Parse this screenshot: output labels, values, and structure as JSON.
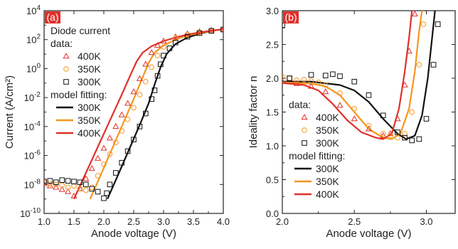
{
  "chart_data": [
    {
      "type": "line",
      "panel_label": "(a)",
      "xlabel": "Anode voltage (V)",
      "ylabel": "Current (A/cm²)",
      "xlim": [
        1.0,
        4.0
      ],
      "ylim_log10": [
        -10,
        4
      ],
      "y_scale": "log",
      "x_ticks": [
        "1.0",
        "1.5",
        "2.0",
        "2.5",
        "3.0",
        "3.5",
        "4.0"
      ],
      "y_ticks": [
        {
          "base": "10",
          "exp": "4"
        },
        {
          "base": "10",
          "exp": "2"
        },
        {
          "base": "10",
          "exp": "0"
        },
        {
          "base": "10",
          "exp": "-2"
        },
        {
          "base": "10",
          "exp": "-4"
        },
        {
          "base": "10",
          "exp": "-6"
        },
        {
          "base": "10",
          "exp": "-8"
        },
        {
          "base": "10",
          "exp": "-10"
        }
      ],
      "legend": {
        "title": "Diode current",
        "data_heading": "data:",
        "model_heading": "model fitting:",
        "placement": "top-left"
      },
      "data_series": [
        {
          "name": "400K",
          "marker": "triangle",
          "color": "#e0302a",
          "points": [
            [
              1.0,
              -7.95
            ],
            [
              1.1,
              -8.1
            ],
            [
              1.2,
              -8.2
            ],
            [
              1.3,
              -8.35
            ],
            [
              1.4,
              -8.5
            ],
            [
              1.5,
              -8.8
            ],
            [
              1.6,
              -8.3
            ],
            [
              1.7,
              -7.6
            ],
            [
              1.8,
              -6.9
            ],
            [
              1.9,
              -6.2
            ],
            [
              2.0,
              -5.5
            ],
            [
              2.1,
              -4.8
            ],
            [
              2.2,
              -4.0
            ],
            [
              2.3,
              -3.2
            ],
            [
              2.4,
              -2.4
            ],
            [
              2.5,
              -1.6
            ],
            [
              2.6,
              -0.7
            ],
            [
              2.7,
              0.3
            ],
            [
              2.8,
              1.1
            ],
            [
              2.9,
              1.6
            ],
            [
              3.0,
              1.9
            ],
            [
              3.2,
              2.2
            ],
            [
              3.4,
              2.4
            ],
            [
              3.6,
              2.55
            ],
            [
              3.8,
              2.65
            ],
            [
              4.0,
              2.7
            ]
          ]
        },
        {
          "name": "350K",
          "marker": "circle",
          "color": "#f5961e",
          "points": [
            [
              1.0,
              -7.85
            ],
            [
              1.1,
              -7.95
            ],
            [
              1.2,
              -8.0
            ],
            [
              1.3,
              -8.05
            ],
            [
              1.4,
              -8.2
            ],
            [
              1.5,
              -8.1
            ],
            [
              1.6,
              -8.3
            ],
            [
              1.7,
              -8.4
            ],
            [
              1.8,
              -8.2
            ],
            [
              1.9,
              -7.4
            ],
            [
              2.0,
              -6.6
            ],
            [
              2.1,
              -5.9
            ],
            [
              2.2,
              -5.1
            ],
            [
              2.3,
              -4.3
            ],
            [
              2.4,
              -3.5
            ],
            [
              2.5,
              -2.7
            ],
            [
              2.6,
              -1.8
            ],
            [
              2.7,
              -0.9
            ],
            [
              2.8,
              0.1
            ],
            [
              2.9,
              0.9
            ],
            [
              3.0,
              1.5
            ],
            [
              3.2,
              2.1
            ],
            [
              3.4,
              2.35
            ],
            [
              3.6,
              2.5
            ],
            [
              3.8,
              2.6
            ],
            [
              4.0,
              2.7
            ]
          ]
        },
        {
          "name": "300K",
          "marker": "square",
          "color": "#111111",
          "points": [
            [
              1.0,
              -7.8
            ],
            [
              1.1,
              -7.75
            ],
            [
              1.2,
              -7.85
            ],
            [
              1.3,
              -7.7
            ],
            [
              1.4,
              -7.75
            ],
            [
              1.5,
              -7.8
            ],
            [
              1.6,
              -7.85
            ],
            [
              1.7,
              -8.0
            ],
            [
              1.8,
              -8.3
            ],
            [
              1.9,
              -8.5
            ],
            [
              2.0,
              -8.95
            ],
            [
              2.05,
              -8.6
            ],
            [
              2.1,
              -8.0
            ],
            [
              2.2,
              -7.2
            ],
            [
              2.3,
              -6.5
            ],
            [
              2.4,
              -5.7
            ],
            [
              2.5,
              -4.9
            ],
            [
              2.6,
              -4.0
            ],
            [
              2.7,
              -3.1
            ],
            [
              2.8,
              -2.1
            ],
            [
              2.85,
              -1.5
            ],
            [
              2.9,
              -0.5
            ],
            [
              2.95,
              0.3
            ],
            [
              3.0,
              0.9
            ],
            [
              3.1,
              1.4
            ],
            [
              3.2,
              1.8
            ],
            [
              3.4,
              2.2
            ],
            [
              3.6,
              2.45
            ],
            [
              3.8,
              2.6
            ],
            [
              4.0,
              2.7
            ]
          ]
        }
      ],
      "model_series": [
        {
          "name": "300K",
          "color": "#111111",
          "points": [
            [
              2.06,
              -9.0
            ],
            [
              2.2,
              -7.7
            ],
            [
              2.4,
              -5.8
            ],
            [
              2.6,
              -3.9
            ],
            [
              2.75,
              -2.4
            ],
            [
              2.85,
              -1.1
            ],
            [
              2.95,
              0.1
            ],
            [
              3.05,
              1.0
            ],
            [
              3.2,
              1.7
            ],
            [
              3.4,
              2.15
            ],
            [
              3.6,
              2.4
            ],
            [
              3.8,
              2.6
            ],
            [
              4.0,
              2.72
            ]
          ]
        },
        {
          "name": "350K",
          "color": "#f5961e",
          "points": [
            [
              1.77,
              -9.0
            ],
            [
              1.9,
              -7.8
            ],
            [
              2.1,
              -5.9
            ],
            [
              2.3,
              -4.0
            ],
            [
              2.5,
              -2.1
            ],
            [
              2.65,
              -0.6
            ],
            [
              2.75,
              0.4
            ],
            [
              2.85,
              1.1
            ],
            [
              3.0,
              1.6
            ],
            [
              3.2,
              2.0
            ],
            [
              3.4,
              2.3
            ],
            [
              3.6,
              2.45
            ],
            [
              3.8,
              2.6
            ],
            [
              4.0,
              2.72
            ]
          ]
        },
        {
          "name": "400K",
          "color": "#e0302a",
          "points": [
            [
              1.5,
              -9.0
            ],
            [
              1.7,
              -7.2
            ],
            [
              1.9,
              -5.4
            ],
            [
              2.1,
              -3.6
            ],
            [
              2.3,
              -1.8
            ],
            [
              2.45,
              -0.4
            ],
            [
              2.55,
              0.5
            ],
            [
              2.65,
              1.1
            ],
            [
              2.8,
              1.55
            ],
            [
              3.0,
              1.9
            ],
            [
              3.2,
              2.15
            ],
            [
              3.4,
              2.35
            ],
            [
              3.6,
              2.5
            ],
            [
              3.8,
              2.62
            ],
            [
              4.0,
              2.72
            ]
          ]
        }
      ]
    },
    {
      "type": "line",
      "panel_label": "(b)",
      "xlabel": "Anode voltage (V)",
      "ylabel": "Ideality factor n",
      "xlim": [
        2.0,
        3.2
      ],
      "ylim": [
        0.0,
        3.0
      ],
      "x_ticks": [
        "2.0",
        "2.5",
        "3.0"
      ],
      "y_ticks": [
        "0.0",
        "0.5",
        "1.0",
        "1.5",
        "2.0",
        "2.5",
        "3.0"
      ],
      "legend": {
        "data_heading": "data:",
        "model_heading": "model fitting:",
        "placement": "bottom-left"
      },
      "data_series": [
        {
          "name": "400K",
          "marker": "triangle",
          "color": "#e0302a",
          "points": [
            [
              2.0,
              1.95
            ],
            [
              2.1,
              1.92
            ],
            [
              2.2,
              1.88
            ],
            [
              2.3,
              1.8
            ],
            [
              2.4,
              1.6
            ],
            [
              2.5,
              1.4
            ],
            [
              2.6,
              1.25
            ],
            [
              2.7,
              1.15
            ],
            [
              2.75,
              1.18
            ],
            [
              2.8,
              1.4
            ],
            [
              2.85,
              1.9
            ],
            [
              2.88,
              2.4
            ],
            [
              2.92,
              2.95
            ]
          ]
        },
        {
          "name": "350K",
          "marker": "circle",
          "color": "#f5961e",
          "points": [
            [
              2.0,
              2.02
            ],
            [
              2.05,
              2.0
            ],
            [
              2.1,
              1.97
            ],
            [
              2.15,
              1.98
            ],
            [
              2.2,
              1.96
            ],
            [
              2.25,
              1.94
            ],
            [
              2.3,
              1.9
            ],
            [
              2.4,
              1.78
            ],
            [
              2.5,
              1.55
            ],
            [
              2.6,
              1.3
            ],
            [
              2.7,
              1.18
            ],
            [
              2.75,
              1.15
            ],
            [
              2.8,
              1.12
            ],
            [
              2.85,
              1.18
            ],
            [
              2.9,
              1.5
            ],
            [
              2.95,
              2.2
            ],
            [
              2.98,
              2.8
            ]
          ]
        },
        {
          "name": "300K",
          "marker": "square",
          "color": "#111111",
          "points": [
            [
              2.0,
              2.78
            ],
            [
              2.05,
              2.0
            ],
            [
              2.2,
              2.05
            ],
            [
              2.3,
              2.04
            ],
            [
              2.35,
              2.06
            ],
            [
              2.4,
              2.03
            ],
            [
              2.5,
              1.95
            ],
            [
              2.6,
              1.75
            ],
            [
              2.7,
              1.45
            ],
            [
              2.8,
              1.2
            ],
            [
              2.85,
              1.12
            ],
            [
              2.9,
              1.08
            ],
            [
              2.95,
              1.1
            ],
            [
              3.0,
              1.4
            ],
            [
              3.05,
              2.2
            ],
            [
              3.08,
              2.8
            ]
          ]
        }
      ],
      "model_series": [
        {
          "name": "300K",
          "color": "#111111",
          "points": [
            [
              2.0,
              1.95
            ],
            [
              2.2,
              1.95
            ],
            [
              2.4,
              1.9
            ],
            [
              2.5,
              1.82
            ],
            [
              2.6,
              1.65
            ],
            [
              2.7,
              1.4
            ],
            [
              2.8,
              1.18
            ],
            [
              2.86,
              1.1
            ],
            [
              2.92,
              1.15
            ],
            [
              2.97,
              1.45
            ],
            [
              3.01,
              2.0
            ],
            [
              3.04,
              2.6
            ],
            [
              3.06,
              3.0
            ]
          ]
        },
        {
          "name": "350K",
          "color": "#f5961e",
          "points": [
            [
              2.0,
              1.94
            ],
            [
              2.2,
              1.92
            ],
            [
              2.3,
              1.88
            ],
            [
              2.4,
              1.75
            ],
            [
              2.5,
              1.5
            ],
            [
              2.6,
              1.25
            ],
            [
              2.7,
              1.12
            ],
            [
              2.76,
              1.1
            ],
            [
              2.82,
              1.18
            ],
            [
              2.88,
              1.55
            ],
            [
              2.92,
              2.1
            ],
            [
              2.95,
              2.7
            ],
            [
              2.97,
              3.0
            ]
          ]
        },
        {
          "name": "400K",
          "color": "#e0302a",
          "points": [
            [
              2.0,
              1.93
            ],
            [
              2.15,
              1.9
            ],
            [
              2.25,
              1.82
            ],
            [
              2.35,
              1.62
            ],
            [
              2.45,
              1.38
            ],
            [
              2.55,
              1.2
            ],
            [
              2.65,
              1.12
            ],
            [
              2.7,
              1.1
            ],
            [
              2.76,
              1.18
            ],
            [
              2.81,
              1.55
            ],
            [
              2.85,
              2.1
            ],
            [
              2.88,
              2.6
            ],
            [
              2.9,
              3.0
            ]
          ]
        }
      ]
    }
  ]
}
